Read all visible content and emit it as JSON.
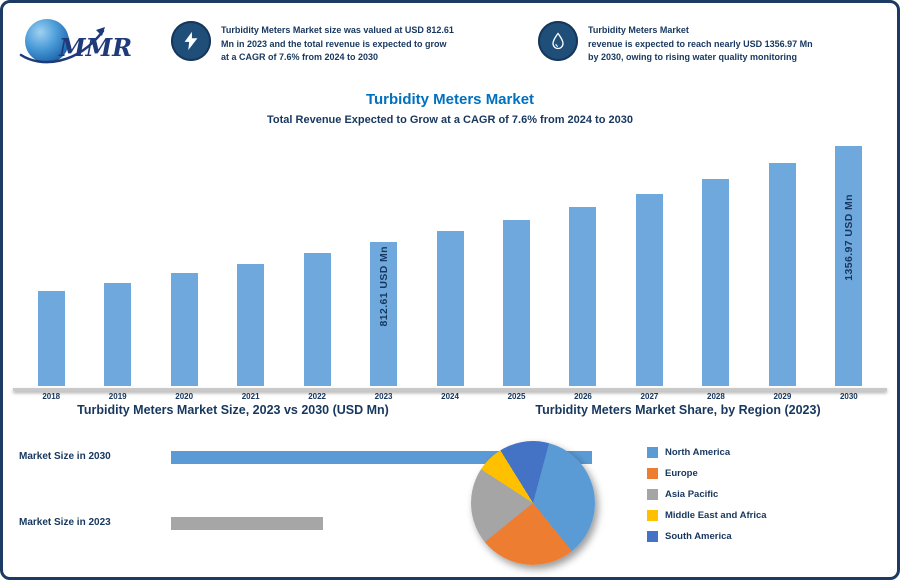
{
  "logo": {
    "text": "MMR"
  },
  "header": {
    "items": [
      {
        "icon": "lightning-icon",
        "lines": [
          "Turbidity Meters Market size was valued at USD 812.61",
          "Mn in 2023 and the total revenue is expected to grow",
          "at a CAGR of 7.6% from 2024 to 2030"
        ]
      },
      {
        "icon": "water-drop-icon",
        "lines": [
          "Turbidity Meters Market",
          "revenue is expected to reach nearly USD 1356.97 Mn",
          "by 2030, owing to rising water quality monitoring"
        ]
      }
    ]
  },
  "titles": {
    "main": "Turbidity Meters Market",
    "subtitle": "Total Revenue Expected to Grow at a CAGR of 7.6% from 2024 to 2030"
  },
  "sections": {
    "left_heading": "Turbidity Meters Market Size, 2023 vs 2030 (USD Mn)",
    "right_heading": "Turbidity Meters Market Share, by Region (2023)"
  },
  "size_bars": {
    "rows": [
      {
        "label": "Market Size in 2030",
        "bar_color": "#5B9BD5",
        "width_pct": 94
      },
      {
        "label": "Market Size in 2023",
        "bar_color": "#A6A6A6",
        "width_pct": 34
      }
    ]
  },
  "chart_data": [
    {
      "type": "bar",
      "title": "Turbidity Meters Market Revenue (USD Mn), 2018-2030",
      "categories": [
        2018,
        2019,
        2020,
        2021,
        2022,
        2023,
        2024,
        2025,
        2026,
        2027,
        2028,
        2029,
        2030
      ],
      "values": [
        540,
        585,
        640,
        690,
        750,
        812.61,
        875,
        940,
        1010,
        1085,
        1170,
        1260,
        1356.97
      ],
      "bar_color": "#6FA8DC",
      "ylim": [
        0,
        1400
      ],
      "callouts": {
        "2023": {
          "text": "812.61 USD Mn",
          "top": 4
        },
        "2030": {
          "text": "1356.97 USD Mn",
          "top": 48
        }
      }
    },
    {
      "type": "pie",
      "title": "Turbidity Meters Market Share, by Region (2023)",
      "labels": [
        "North America",
        "Europe",
        "Asia Pacific",
        "Middle East and Africa",
        "South America"
      ],
      "values": [
        35,
        25,
        20,
        7,
        13
      ],
      "colors": [
        "#5B9BD5",
        "#ED7D31",
        "#A5A5A5",
        "#FFC000",
        "#4472C4"
      ],
      "start_angle_deg": 15,
      "legend_position": "right"
    }
  ]
}
